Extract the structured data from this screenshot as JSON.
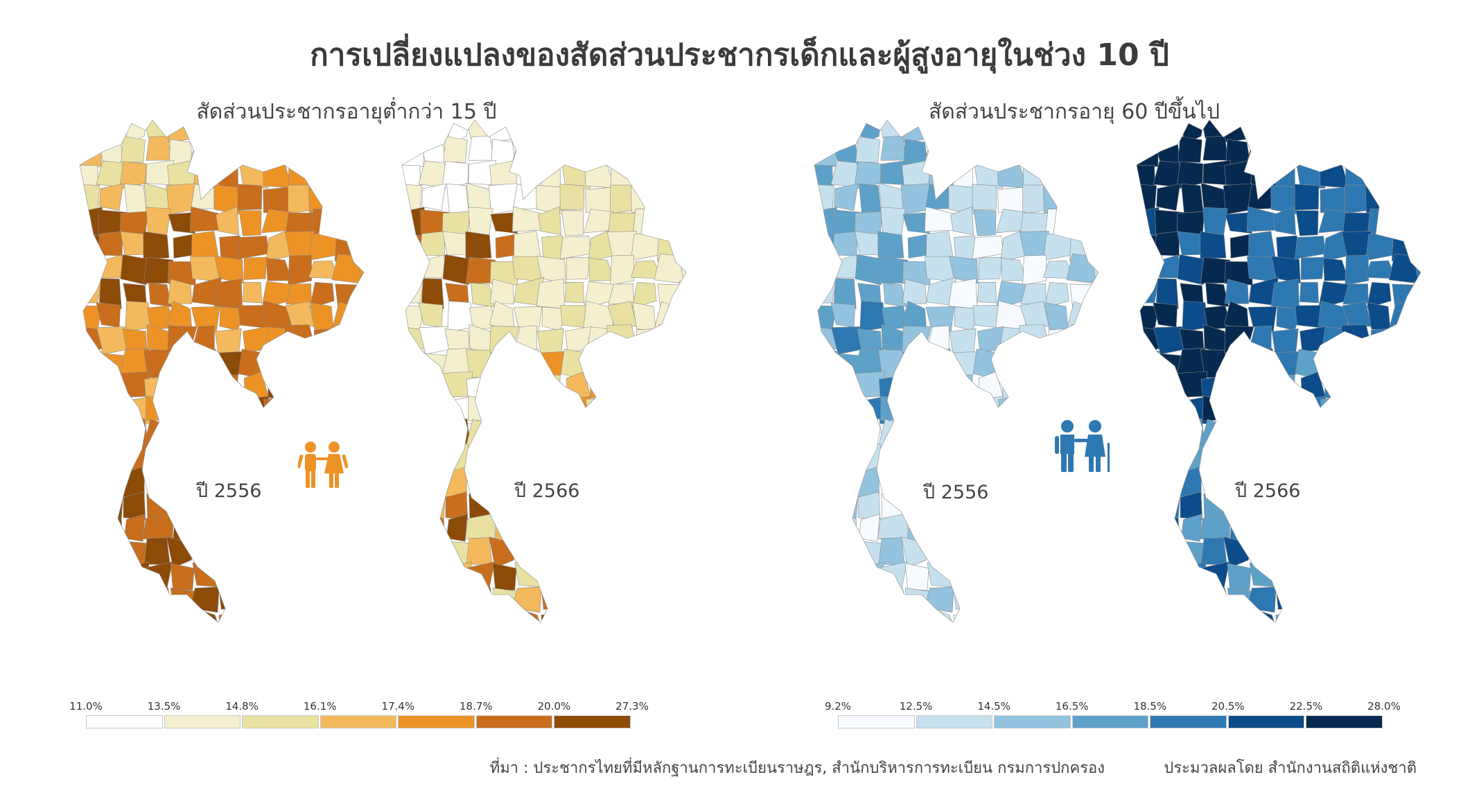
{
  "title": "การเปลี่ยงแปลงของสัดส่วนประชากรเด็กและผู้สูงอายุในช่วง 10 ปี",
  "panels": {
    "children": {
      "title": "สัดส่วนประชากรอายุต่ำกว่า 15 ปี",
      "year_left": "ปี 2556",
      "year_right": "ปี 2566",
      "icon": "children-icon",
      "legend_ticks": [
        "11.0%",
        "13.5%",
        "14.8%",
        "16.1%",
        "17.4%",
        "18.7%",
        "20.0%",
        "27.3%"
      ],
      "legend_colors": [
        "#ffffff",
        "#f4efcf",
        "#e9e1a2",
        "#f3b95c",
        "#ed9326",
        "#c86e1d",
        "#8d4b08"
      ]
    },
    "elderly": {
      "title": "สัดส่วนประชากรอายุ 60 ปีขึ้นไป",
      "year_left": "ปี 2556",
      "year_right": "ปี 2566",
      "icon": "elderly-couple-icon",
      "legend_ticks": [
        "9.2%",
        "12.5%",
        "14.5%",
        "16.5%",
        "18.5%",
        "20.5%",
        "22.5%",
        "28.0%"
      ],
      "legend_colors": [
        "#f7fbff",
        "#c6e0ee",
        "#93c3de",
        "#5da1c9",
        "#2e78b2",
        "#0c4c8a",
        "#06294f"
      ]
    }
  },
  "footer": {
    "source": "ที่มา : ประชากรไทยที่มีหลักฐานการทะเบียนราษฎร, สำนักบริหารการทะเบียน กรมการปกครอง",
    "credit": "ประมวลผลโดย สำนักงานสถิติแห่งชาติ"
  }
}
